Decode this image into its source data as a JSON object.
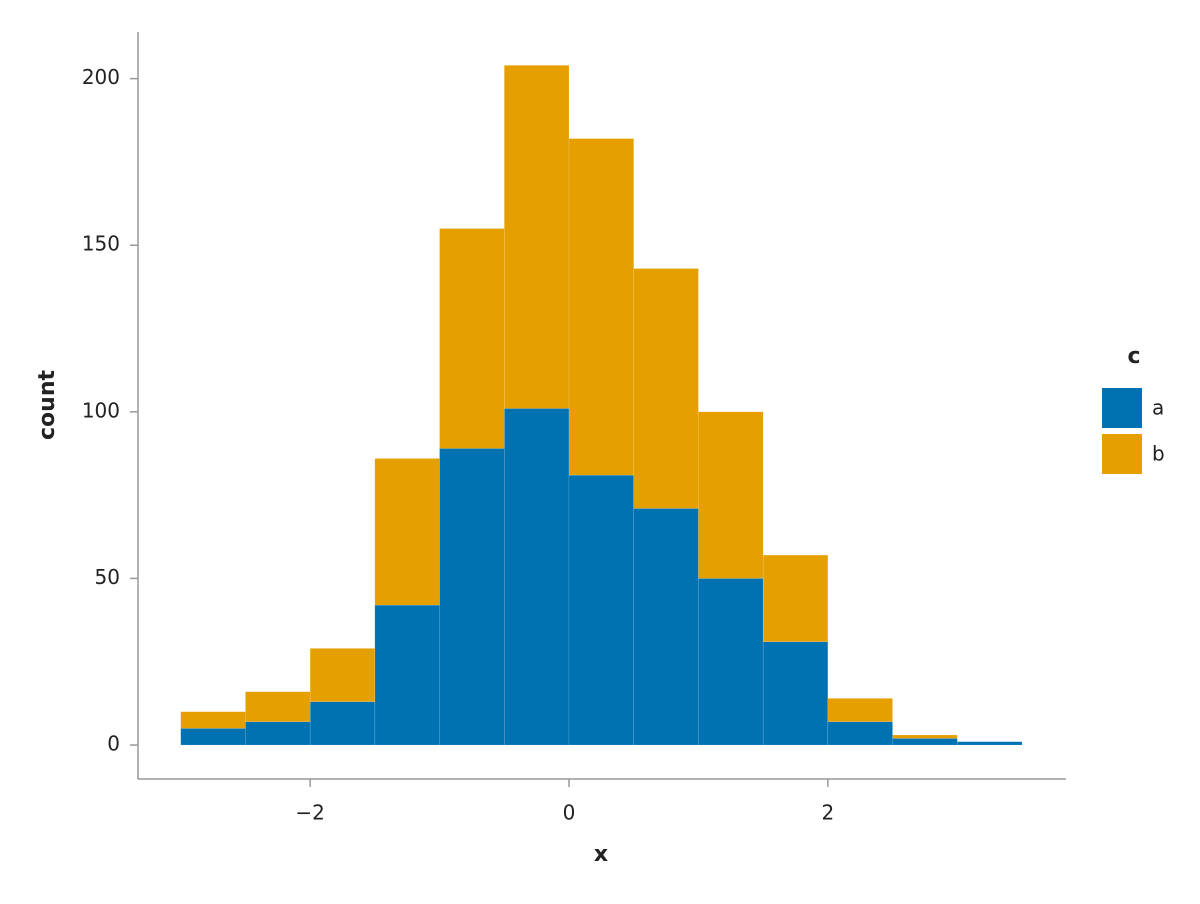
{
  "chart_data": {
    "type": "histogram",
    "stacked": true,
    "bins": [
      -3,
      -2.5,
      -2,
      -1.5,
      -1,
      -0.5,
      0,
      0.5,
      1,
      1.5,
      2,
      2.5,
      3,
      3.5
    ],
    "series": [
      {
        "name": "a",
        "color": "#0072b2",
        "values": [
          5,
          7,
          13,
          42,
          89,
          101,
          81,
          71,
          50,
          31,
          7,
          2,
          1
        ]
      },
      {
        "name": "b",
        "color": "#e69f00",
        "values": [
          5,
          9,
          16,
          44,
          66,
          103,
          101,
          72,
          50,
          26,
          7,
          1,
          0
        ]
      }
    ],
    "x_label": "x",
    "y_label": "count",
    "legend_title": "c",
    "legend_position": "right",
    "xlim": [
      -3.33,
      3.84
    ],
    "ylim": [
      -10.2,
      214
    ],
    "xticks": [
      {
        "value": -2,
        "label": "−2"
      },
      0,
      2
    ],
    "yticks": [
      0,
      50,
      100,
      150,
      200
    ]
  }
}
